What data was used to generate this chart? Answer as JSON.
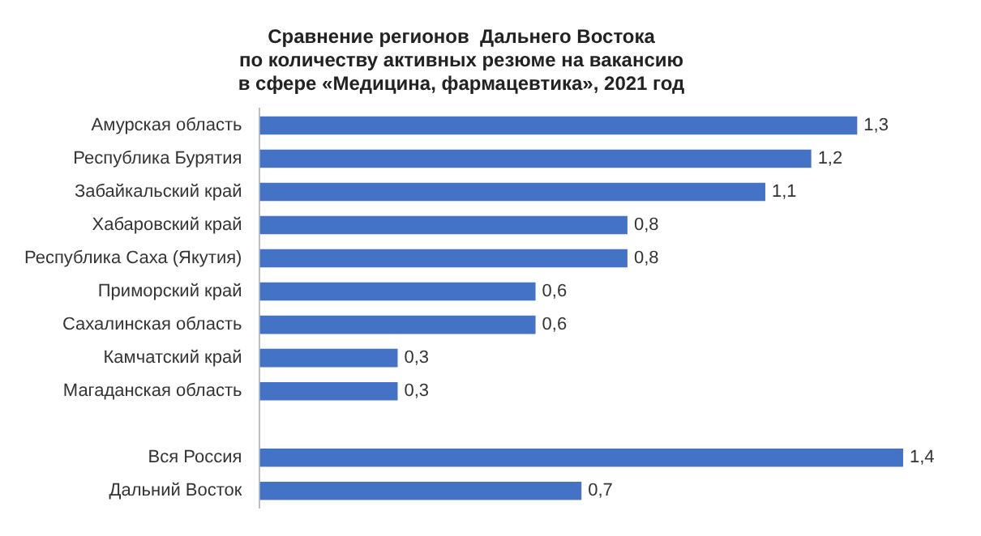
{
  "chart_data": {
    "type": "bar",
    "orientation": "horizontal",
    "title": "Сравнение регионов  Дальнего Востока\nпо количеству активных резюме на вакансию\nв сфере «Медицина, фармацевтика», 2021 год",
    "categories": [
      "Амурская область",
      "Республика Бурятия",
      "Забайкальский край",
      "Хабаровский край",
      "Республика Саха (Якутия)",
      "Приморский край",
      "Сахалинская область",
      "Камчатский край",
      "Магаданская область",
      null,
      "Вся Россия",
      "Дальний Восток"
    ],
    "values": [
      1.3,
      1.2,
      1.1,
      0.8,
      0.8,
      0.6,
      0.6,
      0.3,
      0.3,
      null,
      1.4,
      0.7
    ],
    "value_labels": [
      "1,3",
      "1,2",
      "1,1",
      "0,8",
      "0,8",
      "0,6",
      "0,6",
      "0,3",
      "0,3",
      null,
      "1,4",
      "0,7"
    ],
    "color": "#4472c4",
    "tick_labels": "y",
    "legend": false
  }
}
